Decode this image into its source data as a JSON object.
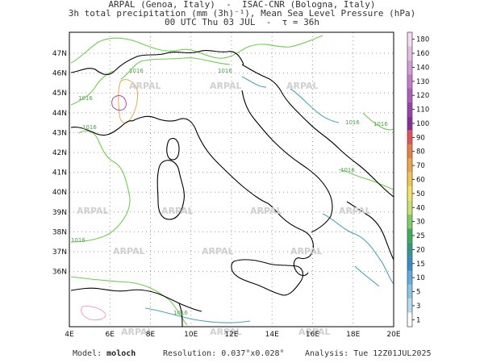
{
  "header": {
    "line1": "ARPAL (Genoa, Italy)  -  ISAC-CNR (Bologna, Italy)",
    "line2": "3h total precipitation (mm (3h)⁻¹), Mean Sea Level Pressure (hPa)",
    "line3": "00 UTC Thu 03 JUL  -  τ = 36h"
  },
  "map": {
    "lon_labels": [
      "4E",
      "6E",
      "8E",
      "10E",
      "12E",
      "14E",
      "16E",
      "18E",
      "20E"
    ],
    "lat_labels": [
      "47N",
      "46N",
      "45N",
      "44N",
      "43N",
      "42N",
      "41N",
      "40N",
      "39N",
      "38N",
      "37N",
      "36N"
    ],
    "watermark": "ARPAL",
    "isobar_labels": [
      "1016",
      "1016",
      "1016",
      "1016",
      "1016",
      "1016",
      "1016",
      "1016",
      "1016"
    ]
  },
  "colorbar": {
    "levels": [
      "180",
      "160",
      "140",
      "130",
      "120",
      "110",
      "100",
      "90",
      "80",
      "70",
      "60",
      "50",
      "40",
      "30",
      "25",
      "20",
      "15",
      "10",
      "5",
      "3",
      "1"
    ],
    "colors": [
      "#f2ddf2",
      "#e2bde6",
      "#d49bd8",
      "#c37acb",
      "#b05bbd",
      "#9b3fae",
      "#8a2aa0",
      "#e85050",
      "#e97f3a",
      "#f2a543",
      "#f5c64c",
      "#f3e45c",
      "#c9e36a",
      "#7fcf60",
      "#3aae55",
      "#2d9b8a",
      "#2f8ecf",
      "#5aaee0",
      "#86c6ea",
      "#b6dcf0",
      "#ffffff"
    ]
  },
  "footer": {
    "model_label": "Model:",
    "model_value": "moloch",
    "resolution": "Resolution: 0.037°x0.028°",
    "analysis": "Analysis: Tue 12Z01JUL2025"
  },
  "colors": {
    "coast": "#000000",
    "isobar": "#6dcf4a",
    "isobar_alt": "#4aa6b8",
    "grid": "#9a9a9a",
    "precip": "#a04ca8"
  }
}
